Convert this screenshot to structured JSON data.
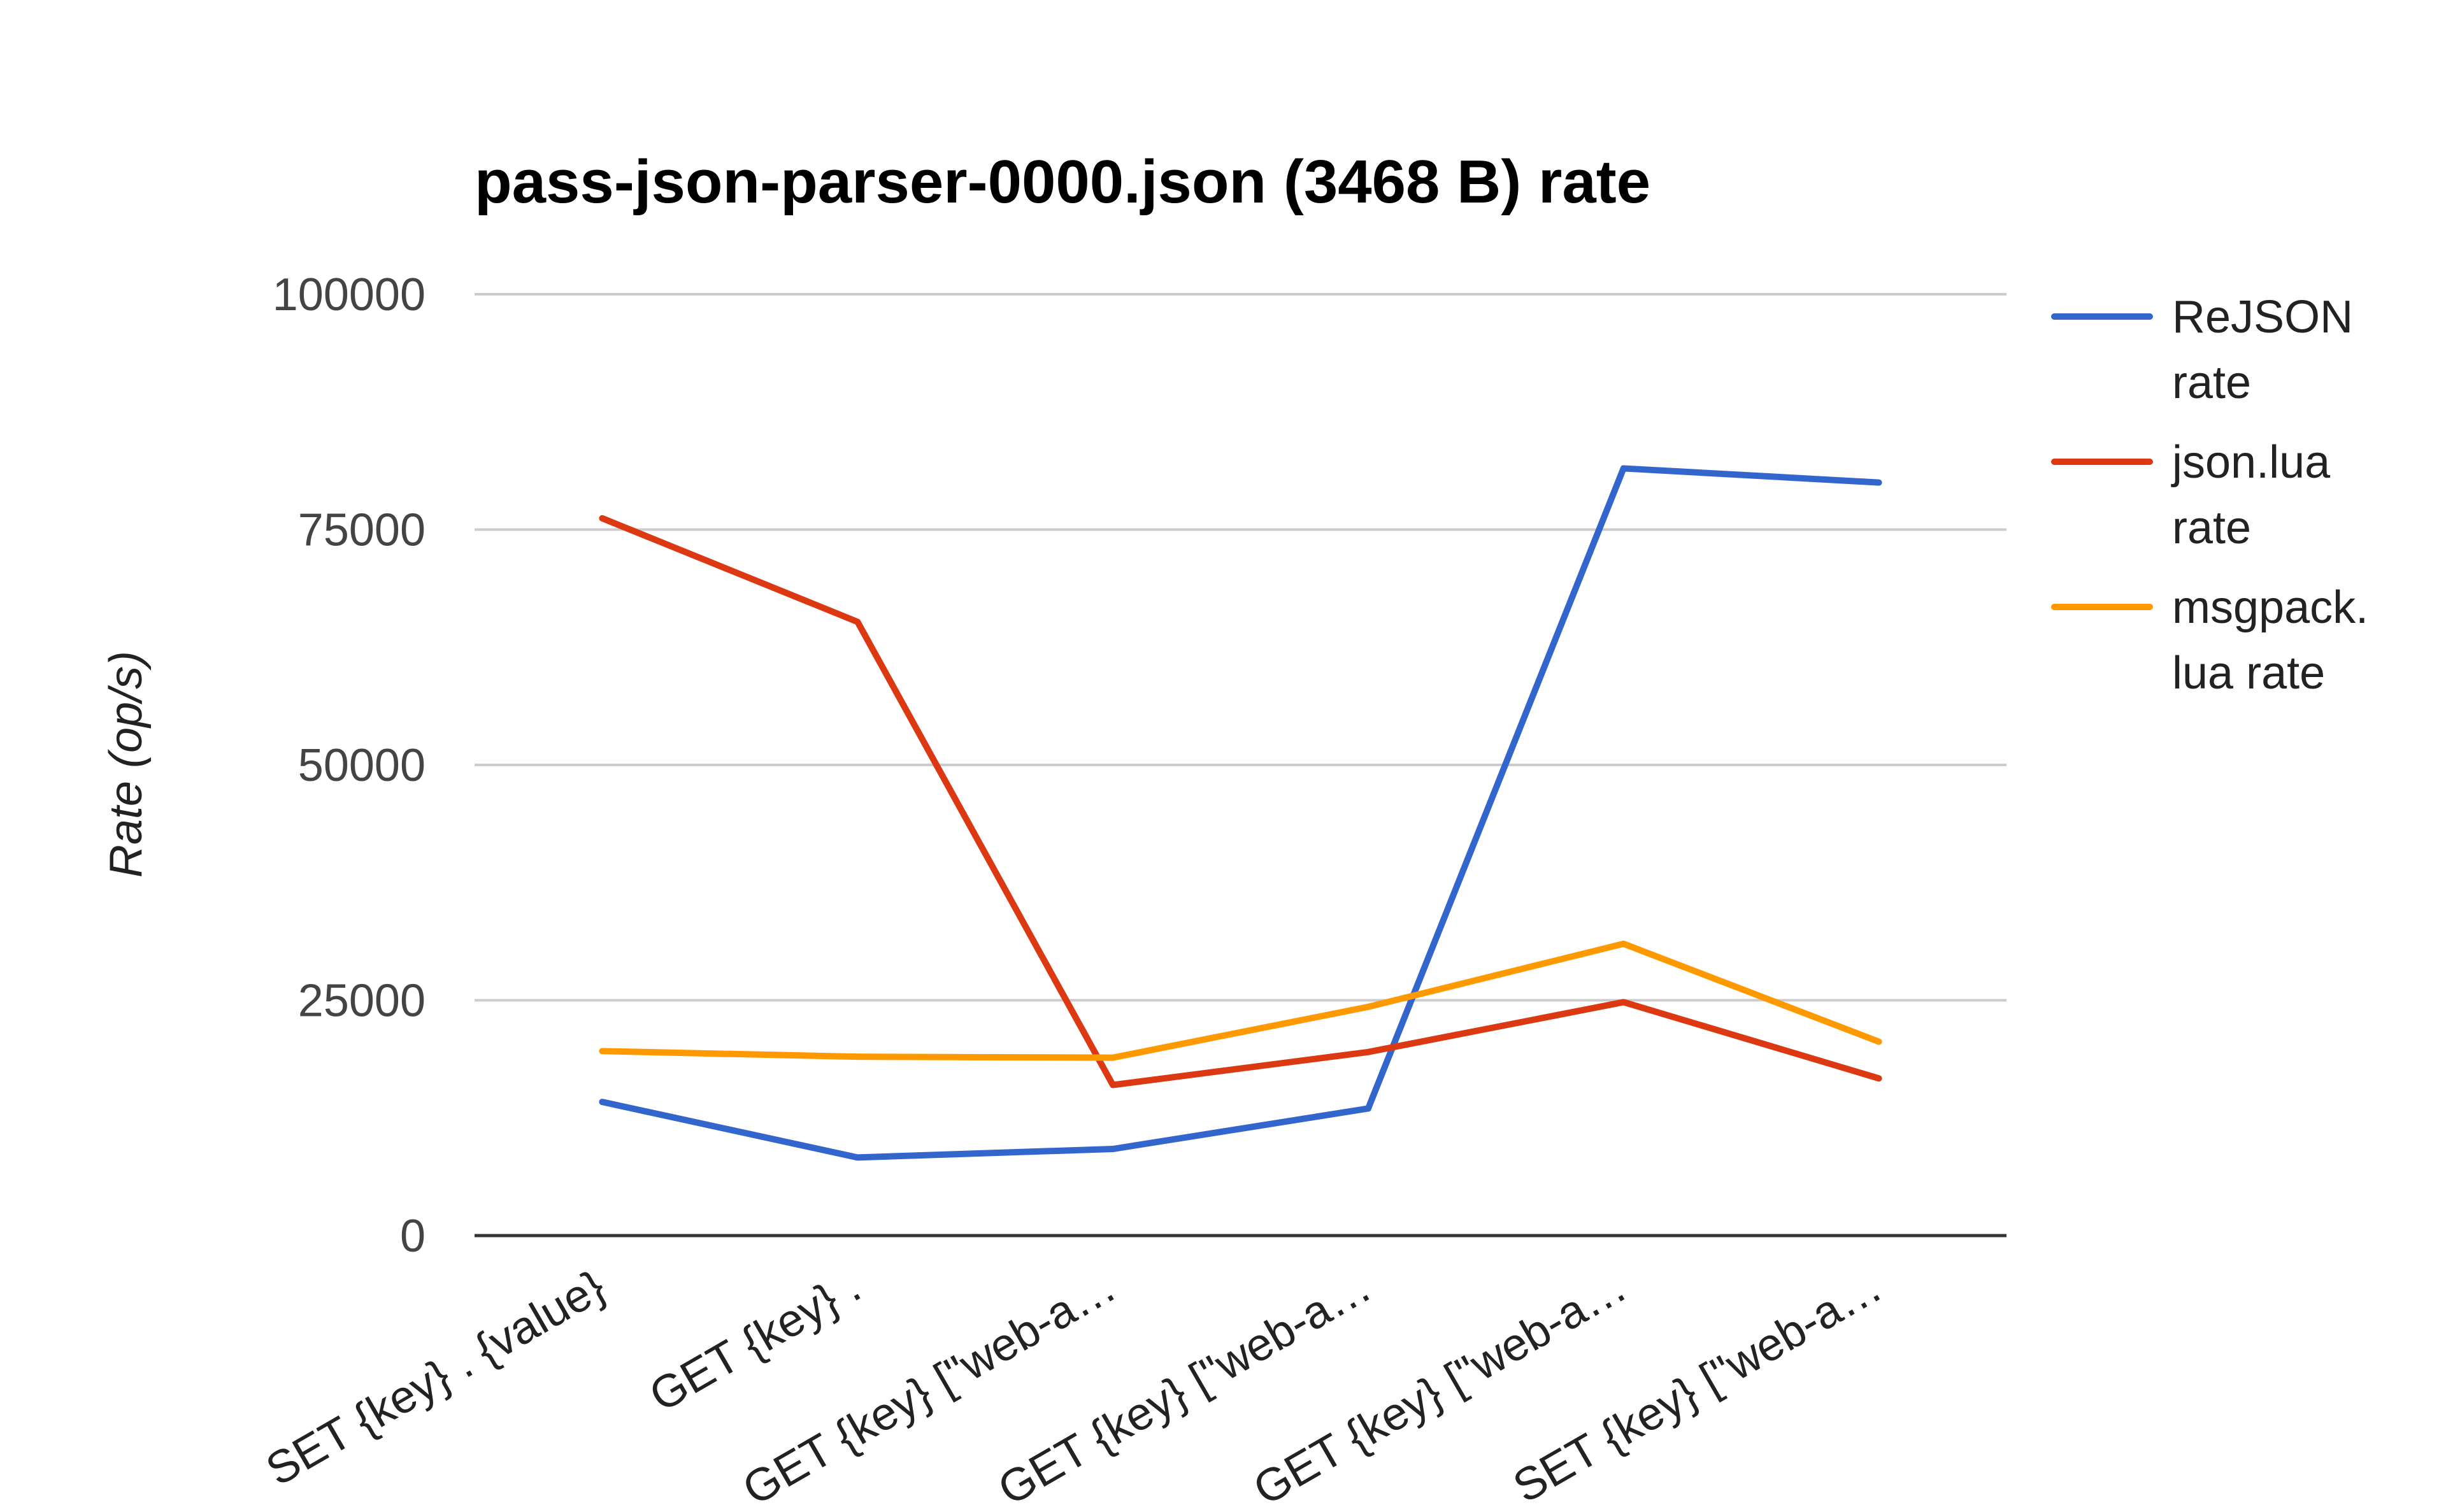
{
  "chart_data": {
    "type": "line",
    "title": "pass-json-parser-0000.json (3468 B) rate",
    "xlabel": "",
    "ylabel": "Rate (op/s)",
    "ylim": [
      0,
      100000
    ],
    "yticks": [
      "0",
      "25000",
      "50000",
      "75000",
      "100000"
    ],
    "categories": [
      "SET {key} . {value}",
      "GET {key} .",
      "GET {key} [\"web-a…",
      "GET {key} [\"web-a…",
      "GET {key} [\"web-a…",
      "SET {key} [\"web-a…"
    ],
    "grid": true,
    "legend_position": "right",
    "series": [
      {
        "name": "ReJSON rate",
        "legend_lines": [
          "ReJSON",
          "rate"
        ],
        "color": "#3366cc",
        "values": [
          14200,
          8300,
          9200,
          13500,
          81500,
          80000
        ]
      },
      {
        "name": "json.lua rate",
        "legend_lines": [
          "json.lua",
          "rate"
        ],
        "color": "#dc3912",
        "values": [
          76200,
          65200,
          16000,
          19500,
          24800,
          16700
        ]
      },
      {
        "name": "msgpack.lua rate",
        "legend_lines": [
          "msgpack.",
          "lua rate"
        ],
        "color": "#ff9900",
        "values": [
          19600,
          19000,
          18900,
          24300,
          31000,
          20600
        ]
      }
    ]
  }
}
